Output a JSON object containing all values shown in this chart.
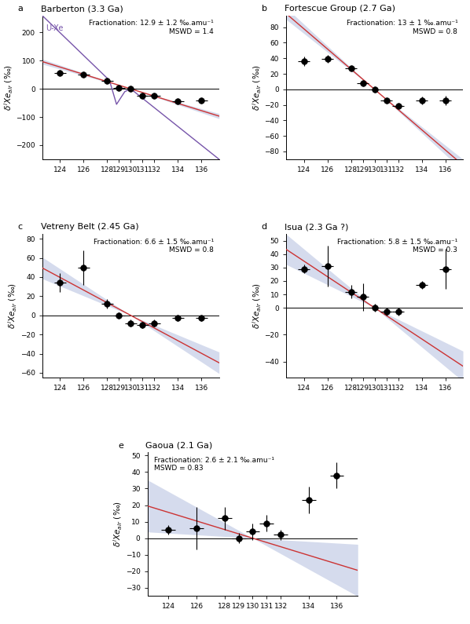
{
  "panels": [
    {
      "label": "a",
      "title": "Barberton (3.3 Ga)",
      "fractionation": "Fractionation: 12.9 ± 1.2 ‰.amu⁻¹",
      "mswd": "MSWD = 1.4",
      "xlim": [
        122.5,
        137.5
      ],
      "ylim": [
        -250,
        260
      ],
      "yticks": [
        -200,
        -100,
        0,
        100,
        200
      ],
      "data_x": [
        124,
        126,
        128,
        129,
        130,
        131,
        132,
        134,
        136
      ],
      "data_y": [
        55,
        50,
        28,
        3,
        0,
        -25,
        -25,
        -45,
        -42
      ],
      "data_yerr": [
        5,
        5,
        5,
        5,
        3,
        5,
        5,
        5,
        5
      ],
      "data_xerr": [
        0.5,
        0.5,
        0.5,
        0.5,
        0.5,
        0.5,
        0.5,
        0.5,
        0.5
      ],
      "fit_slope": -12.9,
      "fit_x0": 130,
      "fit_y0": 0,
      "fit_err": 1.2,
      "has_uxe": true,
      "uxe_x": [
        122.5,
        128.2,
        128.8,
        129.5,
        130.0,
        137.5
      ],
      "uxe_y": [
        260,
        30,
        -55,
        -10,
        0,
        -250
      ],
      "ann_loc": "right"
    },
    {
      "label": "b",
      "title": "Fortescue Group (2.7 Ga)",
      "fractionation": "Fractionation: 13 ± 1 ‰.amu⁻¹",
      "mswd": "MSWD = 0.8",
      "xlim": [
        122.5,
        137.5
      ],
      "ylim": [
        -90,
        95
      ],
      "yticks": [
        -80,
        -60,
        -40,
        -20,
        0,
        20,
        40,
        60,
        80
      ],
      "data_x": [
        124,
        126,
        128,
        129,
        130,
        131,
        132,
        134,
        136
      ],
      "data_y": [
        36,
        39,
        27,
        8,
        0,
        -14,
        -21,
        -14,
        -14
      ],
      "data_yerr": [
        6,
        5,
        3,
        3,
        2,
        3,
        3,
        5,
        6
      ],
      "data_xerr": [
        0.5,
        0.5,
        0.5,
        0.5,
        0.5,
        0.5,
        0.5,
        0.5,
        0.5
      ],
      "fit_slope": -13,
      "fit_x0": 130,
      "fit_y0": 0,
      "fit_err": 1,
      "has_uxe": false,
      "ann_loc": "right"
    },
    {
      "label": "c",
      "title": "Vetreny Belt (2.45 Ga)",
      "fractionation": "Fractionation: 6.6 ± 1.5 ‰.amu⁻¹",
      "mswd": "MSWD = 0.8",
      "xlim": [
        122.5,
        137.5
      ],
      "ylim": [
        -65,
        85
      ],
      "yticks": [
        -60,
        -40,
        -20,
        0,
        20,
        40,
        60,
        80
      ],
      "data_x": [
        124,
        126,
        128,
        129,
        130,
        131,
        132,
        134,
        136
      ],
      "data_y": [
        34,
        50,
        12,
        0,
        -8,
        -10,
        -8,
        -3,
        -3
      ],
      "data_yerr": [
        10,
        18,
        5,
        3,
        4,
        3,
        4,
        3,
        3
      ],
      "data_xerr": [
        0.5,
        0.5,
        0.5,
        0.5,
        0.5,
        0.5,
        0.5,
        0.5,
        0.5
      ],
      "fit_slope": -6.6,
      "fit_x0": 130,
      "fit_y0": 0,
      "fit_err": 1.5,
      "has_uxe": false,
      "ann_loc": "right"
    },
    {
      "label": "d",
      "title": "Isua (2.3 Ga ?)",
      "fractionation": "Fractionation: 5.8 ± 1.5 ‰.amu⁻¹",
      "mswd": "MSWD = 0.3",
      "xlim": [
        122.5,
        137.5
      ],
      "ylim": [
        -52,
        55
      ],
      "yticks": [
        -40,
        -20,
        0,
        10,
        20,
        30,
        40,
        50
      ],
      "data_x": [
        124,
        126,
        128,
        129,
        130,
        131,
        132,
        134,
        136
      ],
      "data_y": [
        29,
        31,
        12,
        8,
        0,
        -3,
        -3,
        17,
        29
      ],
      "data_yerr": [
        3,
        15,
        5,
        10,
        3,
        3,
        3,
        3,
        15
      ],
      "data_xerr": [
        0.5,
        0.5,
        0.5,
        0.5,
        0.5,
        0.5,
        0.5,
        0.5,
        0.5
      ],
      "fit_slope": -5.8,
      "fit_x0": 130,
      "fit_y0": 0,
      "fit_err": 1.5,
      "has_uxe": false,
      "ann_loc": "right"
    },
    {
      "label": "e",
      "title": "Gaoua (2.1 Ga)",
      "fractionation": "Fractionation: 2.6 ± 2.1 ‰.amu⁻¹",
      "mswd": "MSWD = 0.83",
      "xlim": [
        122.5,
        137.5
      ],
      "ylim": [
        -35,
        52
      ],
      "yticks": [
        -30,
        -20,
        -10,
        0,
        10,
        20,
        30,
        40,
        50
      ],
      "data_x": [
        124,
        126,
        128,
        129,
        130,
        131,
        132,
        134,
        136
      ],
      "data_y": [
        5,
        6,
        12,
        0,
        4,
        9,
        2,
        23,
        38
      ],
      "data_yerr": [
        3,
        13,
        7,
        3,
        5,
        5,
        3,
        8,
        8
      ],
      "data_xerr": [
        0.5,
        0.5,
        0.5,
        0.5,
        0.5,
        0.5,
        0.5,
        0.5,
        0.5
      ],
      "fit_slope": -2.6,
      "fit_x0": 130,
      "fit_y0": 0,
      "fit_err": 2.1,
      "has_uxe": false,
      "ann_loc": "left"
    }
  ],
  "xticks": [
    124,
    126,
    128,
    129,
    130,
    131,
    132,
    134,
    136
  ],
  "band_color": "#8899cc",
  "band_alpha": 0.35,
  "line_color": "#cc3333",
  "uxe_color": "#7755aa",
  "zero_line_color": "#000000",
  "point_color": "#000000",
  "marker_size": 5.5,
  "ylabel": "$\\delta^iXe_{air}$ (‰)"
}
